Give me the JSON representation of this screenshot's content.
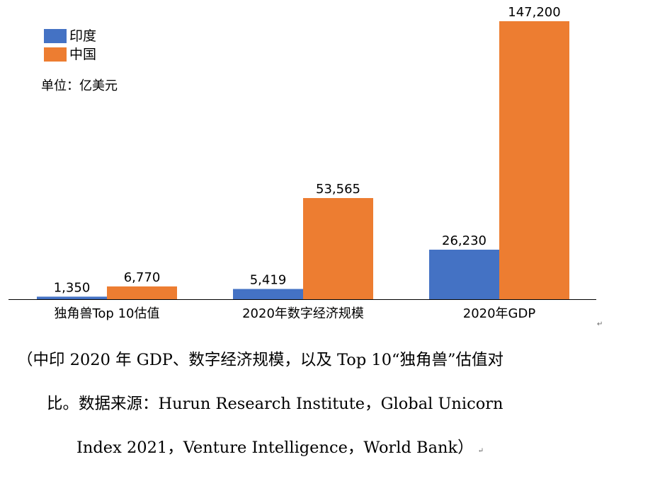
{
  "chart_data": {
    "type": "bar",
    "categories": [
      "独角兽Top 10估值",
      "2020年数字经济规模",
      "2020年GDP"
    ],
    "series": [
      {
        "name": "印度",
        "color": "#4472c4",
        "values": [
          1350,
          5419,
          26230
        ],
        "labels": [
          "1,350",
          "5,419",
          "26,230"
        ]
      },
      {
        "name": "中国",
        "color": "#ed7d31",
        "values": [
          6770,
          53565,
          147200
        ],
        "labels": [
          "6,770",
          "53,565",
          "147,200"
        ]
      }
    ],
    "unit": "单位：亿美元",
    "ylim": [
      0,
      147200
    ],
    "grid": false,
    "legend": "top-left"
  },
  "caption": {
    "line1": "（中印 2020 年 GDP、数字经济规模，以及 Top 10“独角兽”估值对",
    "line2": "比。数据来源：Hurun Research Institute，Global Unicorn",
    "line3": "Index 2021，Venture Intelligence，World Bank）",
    "para_mark": "↵"
  }
}
